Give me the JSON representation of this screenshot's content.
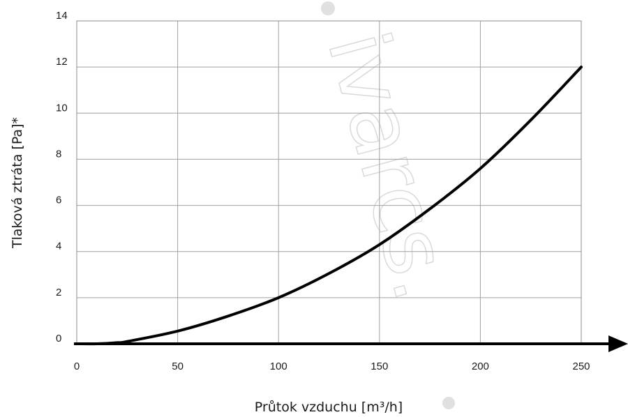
{
  "chart_data": {
    "type": "line",
    "title": "",
    "xlabel": "Průtok vzduchu [m³/h]",
    "ylabel": "Tlaková ztráta [Pa]*",
    "xlim": [
      0,
      250
    ],
    "ylim": [
      0,
      14
    ],
    "x_ticks": [
      "0",
      "50",
      "100",
      "150",
      "200",
      "250"
    ],
    "y_ticks": [
      "0",
      "2",
      "4",
      "6",
      "8",
      "10",
      "12",
      "14"
    ],
    "grid": true,
    "legend": "none",
    "series": [
      {
        "color": "#000000",
        "x": [
          0,
          10,
          20,
          25,
          50,
          75,
          100,
          125,
          150,
          175,
          200,
          225,
          250
        ],
        "y": [
          0,
          0.0,
          0.05,
          0.1,
          0.55,
          1.2,
          2.0,
          3.05,
          4.3,
          5.85,
          7.6,
          9.7,
          12.0
        ]
      }
    ],
    "watermark": "ivarcs."
  }
}
